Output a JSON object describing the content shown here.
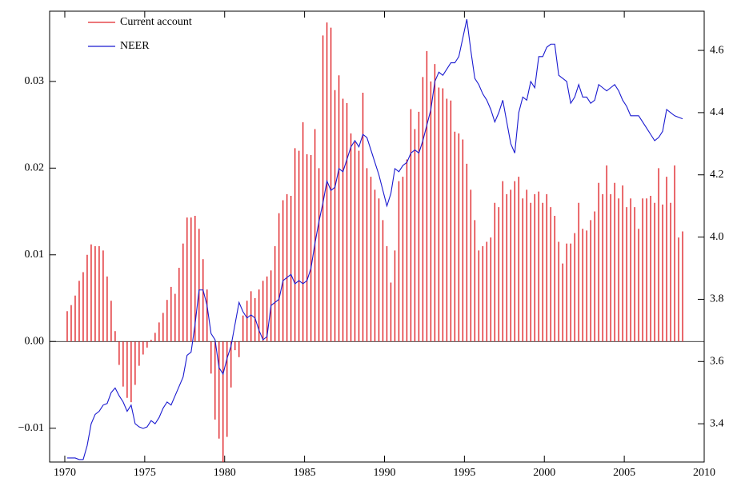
{
  "chart_data": {
    "type": "combo",
    "x": [
      1970.15,
      1970.4,
      1970.65,
      1970.9,
      1971.15,
      1971.4,
      1971.65,
      1971.9,
      1972.15,
      1972.4,
      1972.65,
      1972.9,
      1973.15,
      1973.4,
      1973.65,
      1973.9,
      1974.15,
      1974.4,
      1974.65,
      1974.9,
      1975.15,
      1975.4,
      1975.65,
      1975.9,
      1976.15,
      1976.4,
      1976.65,
      1976.9,
      1977.15,
      1977.4,
      1977.65,
      1977.9,
      1978.15,
      1978.4,
      1978.65,
      1978.9,
      1979.15,
      1979.4,
      1979.65,
      1979.9,
      1980.15,
      1980.4,
      1980.65,
      1980.9,
      1981.15,
      1981.4,
      1981.65,
      1981.9,
      1982.15,
      1982.4,
      1982.65,
      1982.9,
      1983.15,
      1983.4,
      1983.65,
      1983.9,
      1984.15,
      1984.4,
      1984.65,
      1984.9,
      1985.15,
      1985.4,
      1985.65,
      1985.9,
      1986.15,
      1986.4,
      1986.65,
      1986.9,
      1987.15,
      1987.4,
      1987.65,
      1987.9,
      1988.15,
      1988.4,
      1988.65,
      1988.9,
      1989.15,
      1989.4,
      1989.65,
      1989.9,
      1990.15,
      1990.4,
      1990.65,
      1990.9,
      1991.15,
      1991.4,
      1991.65,
      1991.9,
      1992.15,
      1992.4,
      1992.65,
      1992.9,
      1993.15,
      1993.4,
      1993.65,
      1993.9,
      1994.15,
      1994.4,
      1994.65,
      1994.9,
      1995.15,
      1995.4,
      1995.65,
      1995.9,
      1996.15,
      1996.4,
      1996.65,
      1996.9,
      1997.15,
      1997.4,
      1997.65,
      1997.9,
      1998.15,
      1998.4,
      1998.65,
      1998.9,
      1999.15,
      1999.4,
      1999.65,
      1999.9,
      2000.15,
      2000.4,
      2000.65,
      2000.9,
      2001.15,
      2001.4,
      2001.65,
      2001.9,
      2002.15,
      2002.4,
      2002.65,
      2002.9,
      2003.15,
      2003.4,
      2003.65,
      2003.9,
      2004.15,
      2004.4,
      2004.65,
      2004.9,
      2005.15,
      2005.4,
      2005.65,
      2005.9,
      2006.15,
      2006.4,
      2006.65,
      2006.9,
      2007.15,
      2007.4,
      2007.65,
      2007.9,
      2008.15,
      2008.4,
      2008.65
    ],
    "series": [
      {
        "name": "Current account",
        "type": "bar",
        "axis": "y",
        "color": "#e0262b",
        "values": [
          0.0035,
          0.0042,
          0.0053,
          0.007,
          0.008,
          0.01,
          0.0112,
          0.011,
          0.011,
          0.0105,
          0.0075,
          0.0047,
          0.0012,
          -0.0027,
          -0.0052,
          -0.0065,
          -0.007,
          -0.005,
          -0.0028,
          -0.0015,
          -0.0007,
          0.0002,
          0.001,
          0.0022,
          0.0033,
          0.0048,
          0.0063,
          0.0055,
          0.0085,
          0.0113,
          0.0143,
          0.0143,
          0.0145,
          0.013,
          0.0095,
          0.006,
          -0.0037,
          -0.009,
          -0.0112,
          -0.0139,
          -0.011,
          -0.0053,
          -0.001,
          -0.0018,
          0.003,
          0.0047,
          0.0058,
          0.005,
          0.006,
          0.007,
          0.0075,
          0.0082,
          0.011,
          0.0148,
          0.0163,
          0.017,
          0.0168,
          0.0223,
          0.022,
          0.0253,
          0.0216,
          0.0215,
          0.0245,
          0.02,
          0.0353,
          0.0368,
          0.0362,
          0.029,
          0.0307,
          0.028,
          0.0275,
          0.024,
          0.023,
          0.022,
          0.0287,
          0.02,
          0.019,
          0.0175,
          0.0165,
          0.014,
          0.011,
          0.0068,
          0.0105,
          0.0185,
          0.019,
          0.021,
          0.0268,
          0.0245,
          0.0265,
          0.0305,
          0.0335,
          0.03,
          0.032,
          0.0293,
          0.0292,
          0.028,
          0.0278,
          0.0242,
          0.024,
          0.0233,
          0.0205,
          0.0175,
          0.014,
          0.0105,
          0.011,
          0.0115,
          0.012,
          0.016,
          0.0155,
          0.0185,
          0.017,
          0.0175,
          0.0185,
          0.019,
          0.0165,
          0.0175,
          0.016,
          0.017,
          0.0173,
          0.016,
          0.017,
          0.0155,
          0.0145,
          0.0115,
          0.009,
          0.0113,
          0.0113,
          0.0125,
          0.016,
          0.013,
          0.0128,
          0.014,
          0.015,
          0.0183,
          0.017,
          0.0203,
          0.017,
          0.0183,
          0.0165,
          0.018,
          0.0155,
          0.0165,
          0.0155,
          0.013,
          0.0165,
          0.0165,
          0.0168,
          0.016,
          0.02,
          0.0158,
          0.019,
          0.016,
          0.0203,
          0.012,
          0.0127
        ]
      },
      {
        "name": "NEER",
        "type": "line",
        "axis": "y2",
        "color": "#1a1ad0",
        "values": [
          3.29,
          3.29,
          3.29,
          3.285,
          3.285,
          3.33,
          3.4,
          3.43,
          3.44,
          3.46,
          3.465,
          3.5,
          3.515,
          3.49,
          3.47,
          3.44,
          3.46,
          3.4,
          3.39,
          3.385,
          3.39,
          3.41,
          3.4,
          3.42,
          3.45,
          3.47,
          3.46,
          3.49,
          3.52,
          3.55,
          3.62,
          3.63,
          3.72,
          3.83,
          3.83,
          3.78,
          3.69,
          3.67,
          3.58,
          3.56,
          3.61,
          3.65,
          3.72,
          3.79,
          3.76,
          3.74,
          3.75,
          3.74,
          3.7,
          3.67,
          3.68,
          3.78,
          3.79,
          3.8,
          3.86,
          3.87,
          3.88,
          3.85,
          3.86,
          3.85,
          3.86,
          3.9,
          3.98,
          4.05,
          4.11,
          4.18,
          4.15,
          4.16,
          4.22,
          4.21,
          4.25,
          4.29,
          4.31,
          4.29,
          4.33,
          4.32,
          4.28,
          4.24,
          4.2,
          4.15,
          4.1,
          4.14,
          4.22,
          4.21,
          4.23,
          4.24,
          4.27,
          4.28,
          4.27,
          4.31,
          4.36,
          4.41,
          4.5,
          4.53,
          4.52,
          4.54,
          4.56,
          4.56,
          4.58,
          4.64,
          4.7,
          4.6,
          4.51,
          4.49,
          4.46,
          4.44,
          4.41,
          4.37,
          4.4,
          4.44,
          4.37,
          4.3,
          4.27,
          4.4,
          4.45,
          4.44,
          4.5,
          4.48,
          4.58,
          4.58,
          4.61,
          4.62,
          4.62,
          4.52,
          4.51,
          4.5,
          4.43,
          4.45,
          4.49,
          4.45,
          4.45,
          4.43,
          4.44,
          4.49,
          4.48,
          4.47,
          4.48,
          4.49,
          4.47,
          4.44,
          4.42,
          4.39,
          4.39,
          4.39,
          4.37,
          4.35,
          4.33,
          4.31,
          4.32,
          4.34,
          4.41,
          4.4,
          4.39,
          4.385,
          4.38
        ]
      }
    ],
    "xlim": [
      1969.05,
      2010
    ],
    "xticks": [
      1970,
      1975,
      1980,
      1985,
      1990,
      1995,
      2000,
      2005,
      2010
    ],
    "ylim": [
      -0.0139,
      0.0381
    ],
    "yticks": [
      {
        "value": -0.01,
        "label": "−0.01"
      },
      {
        "value": 0,
        "label": "0.00"
      },
      0.01,
      0.02,
      0.03
    ],
    "y2lim": [
      3.277,
      4.726
    ],
    "y2ticks": [
      3.4,
      3.6,
      3.8,
      {
        "value": 4.0,
        "label": "4.0"
      },
      4.2,
      4.4,
      4.6
    ],
    "legend": "upper left",
    "grid": false
  }
}
